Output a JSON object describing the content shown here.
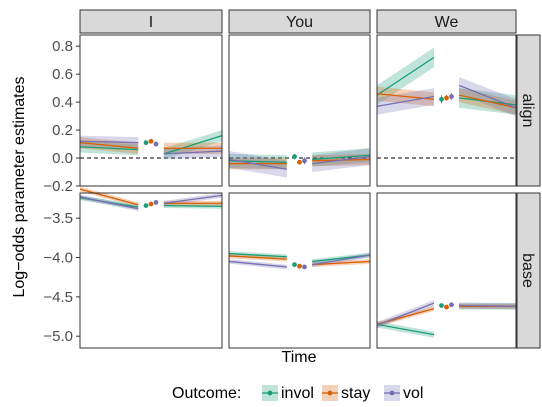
{
  "chart_data": {
    "type": "line",
    "xlabel": "Time",
    "ylabel": "Log−odds parameter estimates",
    "columns": [
      "I",
      "You",
      "We"
    ],
    "rows": [
      {
        "label": "align",
        "yticks": [
          "0.8",
          "0.6",
          "0.4",
          "0.2",
          "0.0",
          "−0.2"
        ],
        "tick_values": [
          0.8,
          0.6,
          0.4,
          0.2,
          0.0,
          -0.2
        ],
        "ylim": [
          -0.2,
          0.88
        ],
        "reference_line": 0.0
      },
      {
        "label": "base",
        "yticks": [
          "−3.5",
          "−4.0",
          "−4.5",
          "−5.0"
        ],
        "tick_values": [
          -3.5,
          -4.0,
          -4.5,
          -5.0
        ],
        "ylim": [
          -5.15,
          -3.18
        ]
      }
    ],
    "xlim": [
      0,
      2
    ],
    "segments": [
      [
        0.0,
        0.82
      ],
      [
        1.18,
        2.0
      ]
    ],
    "legend": {
      "title": "Outcome:",
      "labels": [
        "invol",
        "stay",
        "vol"
      ],
      "position": "bottom"
    },
    "colors": {
      "invol": "#1b9e77",
      "stay": "#d95f02",
      "vol": "#7570b3"
    },
    "panels": [
      {
        "row": "align",
        "col": "I",
        "series": [
          {
            "name": "invol",
            "seg1": [
              0.08,
              0.06
            ],
            "seg2": [
              0.03,
              0.16
            ],
            "ci": 0.04,
            "point": 0.11
          },
          {
            "name": "stay",
            "seg1": [
              0.11,
              0.07
            ],
            "seg2": [
              0.07,
              0.07
            ],
            "ci": 0.04,
            "point": 0.12
          },
          {
            "name": "vol",
            "seg1": [
              0.12,
              0.11
            ],
            "seg2": [
              0.03,
              0.05
            ],
            "ci": 0.04,
            "point": 0.1
          }
        ]
      },
      {
        "row": "align",
        "col": "You",
        "series": [
          {
            "name": "invol",
            "seg1": [
              -0.02,
              -0.03
            ],
            "seg2": [
              -0.01,
              0.02
            ],
            "ci": 0.05,
            "point": 0.01
          },
          {
            "name": "stay",
            "seg1": [
              -0.04,
              -0.04
            ],
            "seg2": [
              -0.02,
              -0.01
            ],
            "ci": 0.04,
            "point": -0.03
          },
          {
            "name": "vol",
            "seg1": [
              -0.01,
              -0.08
            ],
            "seg2": [
              -0.04,
              0.01
            ],
            "ci": 0.06,
            "point": -0.02
          }
        ]
      },
      {
        "row": "align",
        "col": "We",
        "series": [
          {
            "name": "invol",
            "seg1": [
              0.45,
              0.72
            ],
            "seg2": [
              0.43,
              0.38
            ],
            "ci": 0.07,
            "point": 0.42
          },
          {
            "name": "stay",
            "seg1": [
              0.46,
              0.42
            ],
            "seg2": [
              0.45,
              0.36
            ],
            "ci": 0.05,
            "point": 0.43
          },
          {
            "name": "vol",
            "seg1": [
              0.37,
              0.44
            ],
            "seg2": [
              0.52,
              0.36
            ],
            "ci": 0.06,
            "point": 0.44
          }
        ]
      },
      {
        "row": "base",
        "col": "I",
        "series": [
          {
            "name": "invol",
            "seg1": [
              -3.24,
              -3.36
            ],
            "seg2": [
              -3.34,
              -3.35
            ],
            "ci": 0.03,
            "point": -3.34
          },
          {
            "name": "stay",
            "seg1": [
              -3.13,
              -3.33
            ],
            "seg2": [
              -3.31,
              -3.31
            ],
            "ci": 0.03,
            "point": -3.32
          },
          {
            "name": "vol",
            "seg1": [
              -3.23,
              -3.38
            ],
            "seg2": [
              -3.31,
              -3.21
            ],
            "ci": 0.03,
            "point": -3.3
          }
        ]
      },
      {
        "row": "base",
        "col": "You",
        "series": [
          {
            "name": "invol",
            "seg1": [
              -3.95,
              -3.99
            ],
            "seg2": [
              -4.05,
              -3.97
            ],
            "ci": 0.03,
            "point": -4.09
          },
          {
            "name": "stay",
            "seg1": [
              -3.98,
              -4.02
            ],
            "seg2": [
              -4.09,
              -4.05
            ],
            "ci": 0.03,
            "point": -4.11
          },
          {
            "name": "vol",
            "seg1": [
              -4.05,
              -4.12
            ],
            "seg2": [
              -4.09,
              -3.97
            ],
            "ci": 0.03,
            "point": -4.12
          }
        ]
      },
      {
        "row": "base",
        "col": "We",
        "series": [
          {
            "name": "invol",
            "seg1": [
              -4.85,
              -4.98
            ],
            "seg2": [
              -4.62,
              -4.62
            ],
            "ci": 0.04,
            "point": -4.61
          },
          {
            "name": "stay",
            "seg1": [
              -4.85,
              -4.65
            ],
            "seg2": [
              -4.62,
              -4.62
            ],
            "ci": 0.03,
            "point": -4.63
          },
          {
            "name": "vol",
            "seg1": [
              -4.86,
              -4.58
            ],
            "seg2": [
              -4.61,
              -4.62
            ],
            "ci": 0.04,
            "point": -4.6
          }
        ]
      }
    ]
  }
}
